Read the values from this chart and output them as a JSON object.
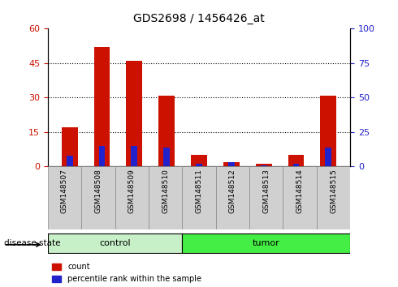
{
  "title": "GDS2698 / 1456426_at",
  "samples": [
    "GSM148507",
    "GSM148508",
    "GSM148509",
    "GSM148510",
    "GSM148511",
    "GSM148512",
    "GSM148513",
    "GSM148514",
    "GSM148515"
  ],
  "counts": [
    17,
    52,
    46,
    31,
    5,
    2,
    1,
    5,
    31
  ],
  "percentile_ranks": [
    8,
    15,
    15,
    14,
    2,
    3,
    1,
    2,
    14
  ],
  "groups": [
    "control",
    "control",
    "control",
    "control",
    "tumor",
    "tumor",
    "tumor",
    "tumor",
    "tumor"
  ],
  "control_color_light": "#c8f0c8",
  "control_color": "#90ee90",
  "tumor_color": "#44ee44",
  "bar_color_red": "#cc1100",
  "bar_color_blue": "#2222cc",
  "left_ylim": [
    0,
    60
  ],
  "right_ylim": [
    0,
    100
  ],
  "left_yticks": [
    0,
    15,
    30,
    45,
    60
  ],
  "right_yticks": [
    0,
    25,
    50,
    75,
    100
  ],
  "legend_count": "count",
  "legend_pct": "percentile rank within the sample",
  "label_disease_state": "disease state",
  "tick_label_color_left": "#cc1100",
  "tick_label_color_right": "#2222cc",
  "bar_width": 0.5
}
